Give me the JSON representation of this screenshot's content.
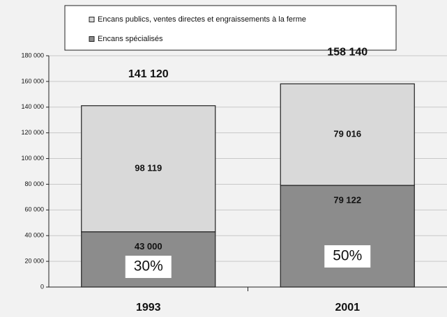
{
  "chart_data": {
    "type": "stacked-bar",
    "categories": [
      "1993",
      "2001"
    ],
    "series": [
      {
        "name": "Encans publics, ventes directes et engraissements à la ferme",
        "color": "#d9d9d9",
        "values": [
          98119,
          79016
        ],
        "value_labels": [
          "98 119",
          "79 016"
        ]
      },
      {
        "name": "Encans spécialisés",
        "color": "#8c8c8c",
        "values": [
          43000,
          79122
        ],
        "value_labels": [
          "43 000",
          "79 122"
        ]
      }
    ],
    "totals": [
      141120,
      158140
    ],
    "total_labels": [
      "141 120",
      "158 140"
    ],
    "annotations": [
      "30%",
      "50%"
    ],
    "ylim": [
      0,
      180000
    ],
    "yticks": [
      0,
      {
        "value": 20000,
        "label": "20 000"
      },
      {
        "value": 40000,
        "label": "40 000"
      },
      {
        "value": 60000,
        "label": "60 000"
      },
      {
        "value": 80000,
        "label": "80 000"
      },
      {
        "value": 100000,
        "label": "100 000"
      },
      {
        "value": 120000,
        "label": "120 000"
      },
      {
        "value": 140000,
        "label": "140 000"
      },
      {
        "value": 160000,
        "label": "160 000"
      },
      {
        "value": 180000,
        "label": "180 000"
      }
    ],
    "grid": true
  }
}
